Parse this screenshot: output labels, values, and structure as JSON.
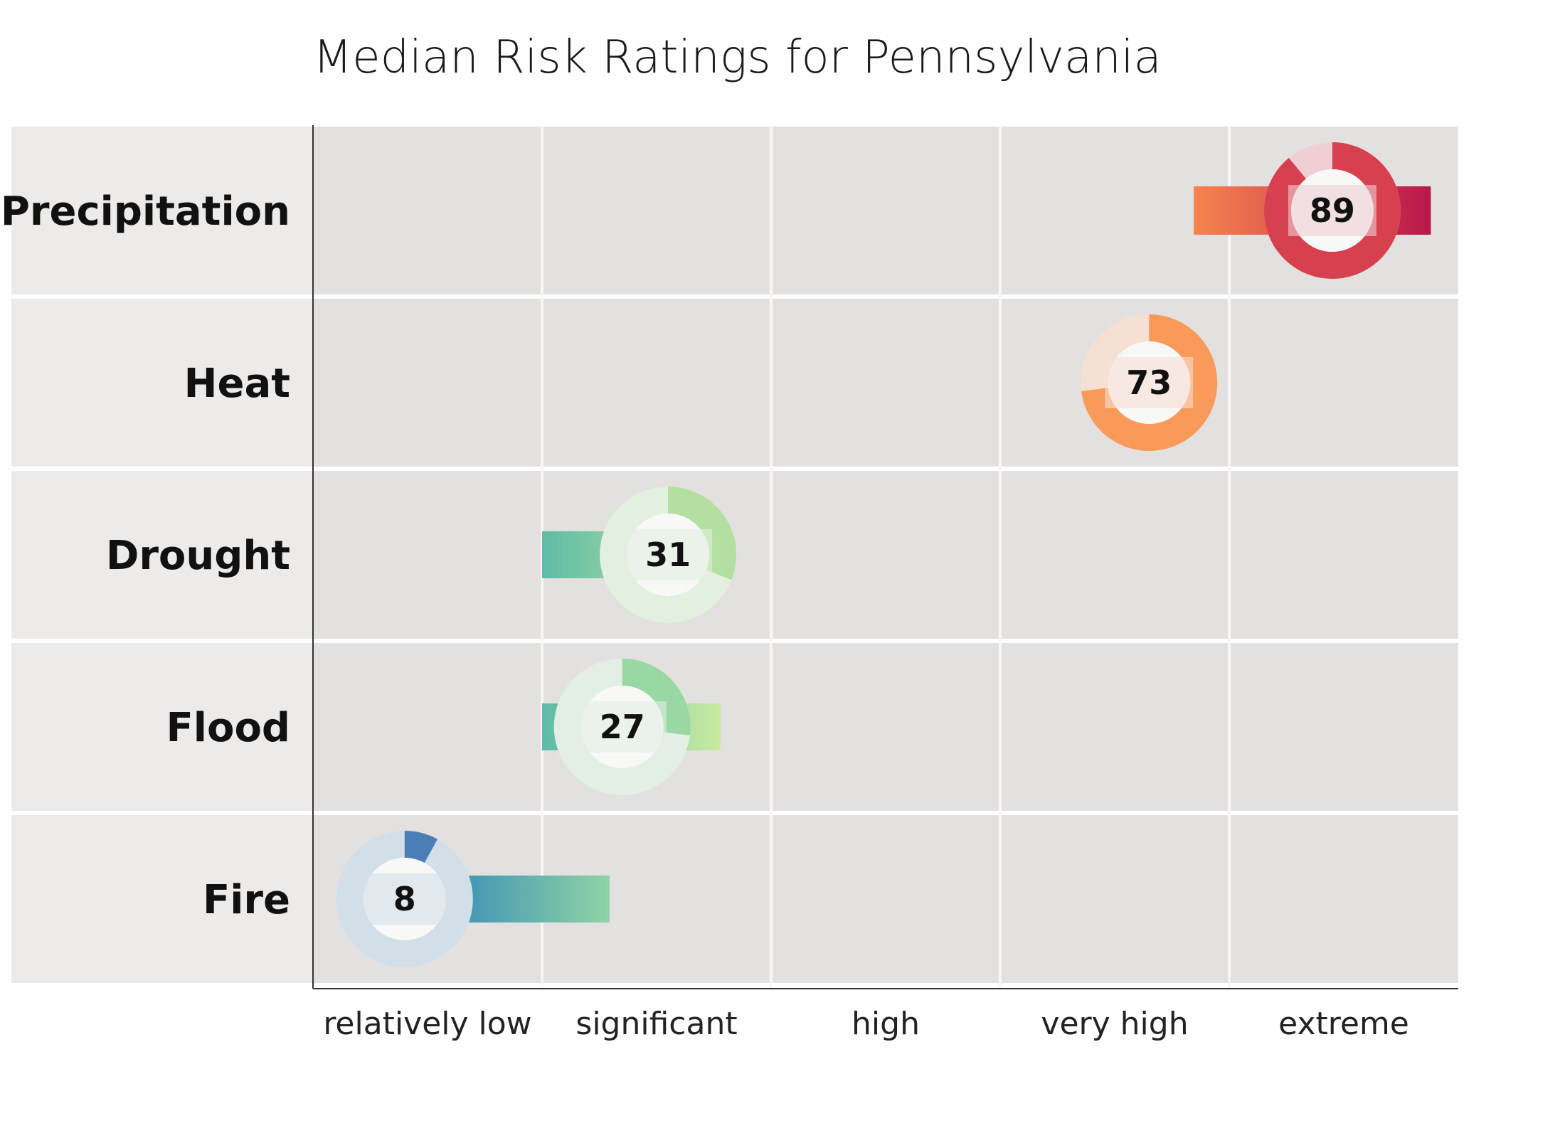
{
  "chart_data": {
    "type": "bar",
    "title": "Median Risk Ratings for Pennsylvania",
    "xlabel": "",
    "ylabel": "",
    "xlim": [
      0,
      100
    ],
    "x_tick_labels": [
      "relatively low",
      "significant",
      "high",
      "very high",
      "extreme"
    ],
    "grid": true,
    "legend": null,
    "categories": [
      "Precipitation",
      "Heat",
      "Drought",
      "Flood",
      "Fire"
    ],
    "series": [
      {
        "values": [
          89,
          73,
          31,
          27,
          8
        ],
        "ranges": [
          [
            76.9,
            97.6
          ],
          null,
          [
            20,
            30.9
          ],
          [
            20,
            35.6
          ],
          [
            11.7,
            25.9
          ]
        ],
        "colors": {
          "Precipitation": {
            "ring": "#d7404e",
            "track": "#efcfd4",
            "bar_start": "#f6844e",
            "bar_end": "#b8184c"
          },
          "Heat": {
            "ring": "#f99a5a",
            "track": "#f6e0d3",
            "bar_start": "#f99a5a",
            "bar_end": "#f99a5a"
          },
          "Drought": {
            "ring": "#b3dfa0",
            "track": "#e3efdf",
            "bar_start": "#5fbba6",
            "bar_end": "#a8dca4"
          },
          "Flood": {
            "ring": "#9ad8a3",
            "track": "#e3efe4",
            "bar_start": "#5cbba7",
            "bar_end": "#c9eaa0"
          },
          "Fire": {
            "ring": "#4a7fb5",
            "track": "#d3dfe8",
            "bar_start": "#3a8fb6",
            "bar_end": "#8fd3a6"
          }
        }
      }
    ]
  }
}
